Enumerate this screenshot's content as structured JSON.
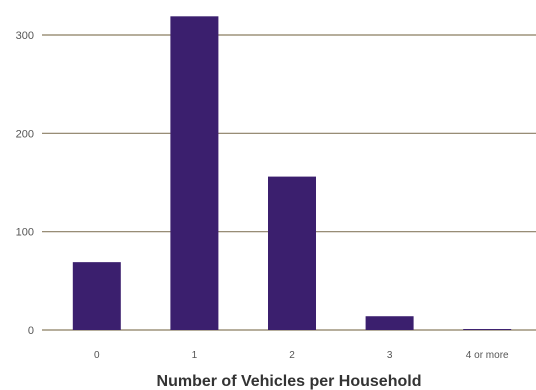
{
  "chart_data": {
    "type": "bar",
    "title": "",
    "xlabel": "Number of Vehicles per Household",
    "ylabel": "",
    "categories": [
      "0",
      "1",
      "2",
      "3",
      "4 or more"
    ],
    "values": [
      69,
      319,
      156,
      14,
      1
    ],
    "ylim": [
      0,
      330
    ],
    "yticks": [
      0,
      100,
      200,
      300
    ],
    "grid": true,
    "legend": "none",
    "colors": {
      "bar": "#3b1f6e",
      "grid": "#8a7d62",
      "tick_text": "#555555",
      "label_text": "#333333"
    }
  }
}
